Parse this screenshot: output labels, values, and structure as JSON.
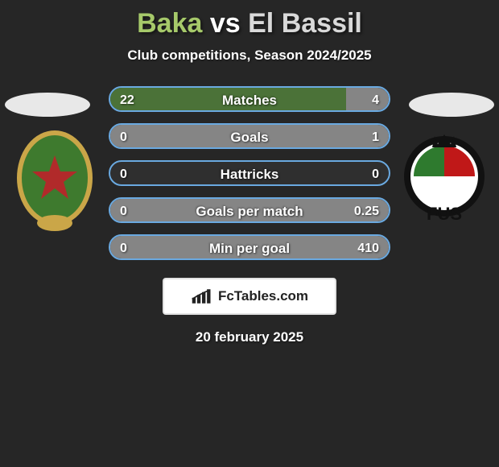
{
  "colors": {
    "background": "#262626",
    "text": "#ffffff",
    "bar_border": "#6aa9e0",
    "bar_empty": "#2f2f2f",
    "fill_player1": "#4f7a3a",
    "fill_player2": "#8f8f8f",
    "head_ellipse": "#e8e8e8",
    "brand_bg": "#ffffff",
    "brand_border": "#e2e2e2",
    "brand_text": "#222222"
  },
  "title": {
    "player1": "Baka",
    "vs": " vs ",
    "player2": "El Bassil",
    "player1_color": "#a6c96a",
    "player2_color": "#d9d9d9"
  },
  "subtitle": "Club competitions, Season 2024/2025",
  "crests": {
    "player1": {
      "shield_fill": "#3e7a2e",
      "shield_stroke": "#caa648",
      "star_fill": "#b12a2a",
      "ribbon_fill": "#caa648"
    },
    "player2": {
      "circle_fill": "#ffffff",
      "circle_stroke": "#111111",
      "inner_fill1": "#c01818",
      "inner_fill2": "#2e7a2e",
      "text_fill": "#111111",
      "label": "FUS"
    }
  },
  "stats": [
    {
      "label": "Matches",
      "p1": "22",
      "p2": "4",
      "p1_pct": 84.6,
      "p2_pct": 15.4
    },
    {
      "label": "Goals",
      "p1": "0",
      "p2": "1",
      "p1_pct": 0,
      "p2_pct": 100
    },
    {
      "label": "Hattricks",
      "p1": "0",
      "p2": "0",
      "p1_pct": 0,
      "p2_pct": 0
    },
    {
      "label": "Goals per match",
      "p1": "0",
      "p2": "0.25",
      "p1_pct": 0,
      "p2_pct": 100
    },
    {
      "label": "Min per goal",
      "p1": "0",
      "p2": "410",
      "p1_pct": 0,
      "p2_pct": 100
    }
  ],
  "brand": "FcTables.com",
  "date": "20 february 2025"
}
